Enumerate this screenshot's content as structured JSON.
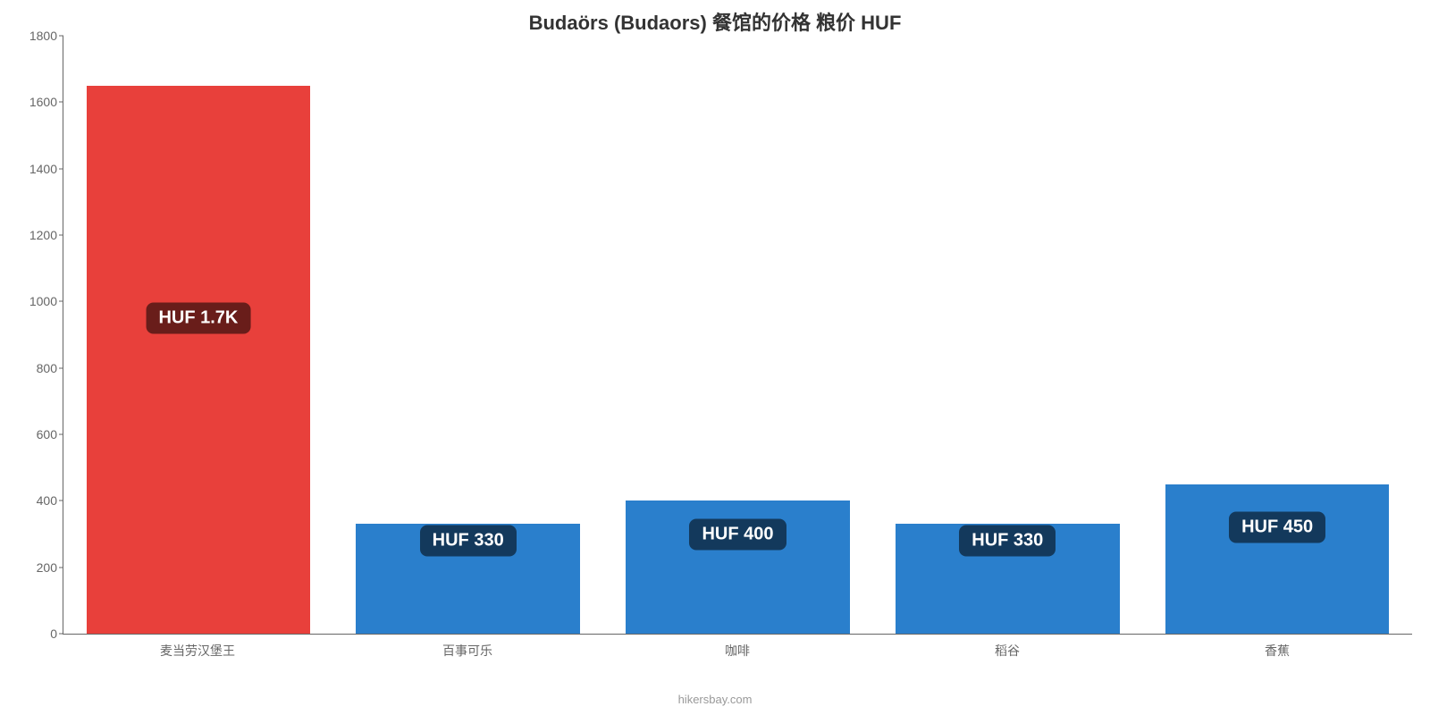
{
  "chart": {
    "type": "bar",
    "title": "Budaörs (Budaors) 餐馆的价格 粮价 HUF",
    "title_fontsize": 22,
    "title_color": "#333333",
    "background_color": "#ffffff",
    "axis_color": "#666666",
    "ytick_fontsize": 14,
    "xlabel_fontsize": 14,
    "badge_fontsize": 20,
    "badge_bg": "rgba(0,0,0,0.55)",
    "badge_text_color": "#ffffff",
    "ylim_min": 0,
    "ylim_max": 1800,
    "ytick_step": 200,
    "yticks": [
      0,
      200,
      400,
      600,
      800,
      1000,
      1200,
      1400,
      1600,
      1800
    ],
    "bar_width_pct": 83,
    "categories": [
      "麦当劳汉堡王",
      "百事可乐",
      "咖啡",
      "稻谷",
      "香蕉"
    ],
    "values": [
      1650,
      330,
      400,
      330,
      450
    ],
    "value_labels": [
      "HUF 1.7K",
      "HUF 330",
      "HUF 400",
      "HUF 330",
      "HUF 450"
    ],
    "bar_colors": [
      "#e8403b",
      "#2a7fcc",
      "#2a7fcc",
      "#2a7fcc",
      "#2a7fcc"
    ],
    "badge_y_value": [
      950,
      280,
      300,
      280,
      320
    ],
    "footer": "hikersbay.com",
    "footer_fontsize": 13,
    "footer_color": "#999999"
  }
}
